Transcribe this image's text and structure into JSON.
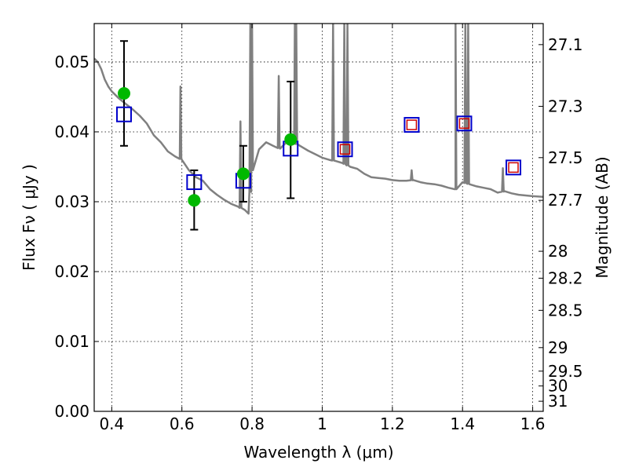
{
  "chart_data": {
    "type": "scatter",
    "xlabel": "Wavelength  λ (μm)",
    "ylabel": "Flux  Fν  ( μJy )",
    "ylabel_right": "Magnitude (AB)",
    "xlim": [
      0.35,
      1.63
    ],
    "ylim": [
      0.0,
      0.0555
    ],
    "grid": true,
    "x_ticks": [
      0.4,
      0.6,
      0.8,
      1.0,
      1.2,
      1.4,
      1.6
    ],
    "x_tick_labels": [
      "0.4",
      "0.6",
      "0.8",
      "1",
      "1.2",
      "1.4",
      "1.6"
    ],
    "y_ticks": [
      0.0,
      0.01,
      0.02,
      0.03,
      0.04,
      0.05
    ],
    "y_tick_labels": [
      "0.00",
      "0.01",
      "0.02",
      "0.03",
      "0.04",
      "0.05"
    ],
    "mag_ticks": [
      "27.1",
      "27.3",
      "27.5",
      "27.7",
      "28",
      "28.2",
      "28.5",
      "29",
      "29.5",
      "30",
      "31"
    ],
    "colors": {
      "sed": "#808080",
      "observed": "#00b800",
      "model": "#0000cc",
      "model_inner": "#cc0000",
      "error": "#000000"
    },
    "sed_model": {
      "x": [
        0.35,
        0.36,
        0.37,
        0.38,
        0.39,
        0.4,
        0.42,
        0.44,
        0.46,
        0.48,
        0.5,
        0.52,
        0.54,
        0.56,
        0.58,
        0.594,
        0.6,
        0.62,
        0.64,
        0.66,
        0.68,
        0.7,
        0.72,
        0.74,
        0.76,
        0.78,
        0.79,
        0.8,
        0.82,
        0.84,
        0.86,
        0.88,
        0.9,
        0.92,
        0.94,
        0.96,
        0.98,
        1.0,
        1.02,
        1.04,
        1.06,
        1.08,
        1.1,
        1.12,
        1.14,
        1.16,
        1.18,
        1.2,
        1.22,
        1.24,
        1.26,
        1.28,
        1.3,
        1.32,
        1.34,
        1.36,
        1.38,
        1.4,
        1.42,
        1.44,
        1.46,
        1.48,
        1.5,
        1.52,
        1.54,
        1.56,
        1.58,
        1.6,
        1.63
      ],
      "y": [
        0.0505,
        0.05,
        0.049,
        0.0475,
        0.0465,
        0.0458,
        0.0448,
        0.044,
        0.0432,
        0.0423,
        0.0412,
        0.0395,
        0.0385,
        0.0372,
        0.0365,
        0.0362,
        0.036,
        0.0345,
        0.0335,
        0.033,
        0.0318,
        0.031,
        0.0303,
        0.0297,
        0.0293,
        0.0288,
        0.0283,
        0.0345,
        0.0375,
        0.0385,
        0.038,
        0.0376,
        0.0386,
        0.0384,
        0.0379,
        0.0373,
        0.0368,
        0.0363,
        0.036,
        0.0358,
        0.0355,
        0.035,
        0.0347,
        0.034,
        0.0335,
        0.0334,
        0.0333,
        0.0331,
        0.033,
        0.033,
        0.0331,
        0.0328,
        0.0326,
        0.0325,
        0.0323,
        0.032,
        0.0318,
        0.0328,
        0.0325,
        0.0322,
        0.032,
        0.0318,
        0.0313,
        0.0315,
        0.0312,
        0.031,
        0.0309,
        0.0308,
        0.0307
      ],
      "emission_lines": [
        {
          "x": 0.596,
          "peak": 0.0465
        },
        {
          "x": 0.767,
          "peak": 0.0415
        },
        {
          "x": 0.795,
          "peak": 0.0555
        },
        {
          "x": 0.8,
          "peak": 0.0555
        },
        {
          "x": 0.876,
          "peak": 0.048
        },
        {
          "x": 0.922,
          "peak": 0.0555
        },
        {
          "x": 0.926,
          "peak": 0.0555
        },
        {
          "x": 1.031,
          "peak": 0.0555
        },
        {
          "x": 1.063,
          "peak": 0.0555
        },
        {
          "x": 1.072,
          "peak": 0.0555
        },
        {
          "x": 1.255,
          "peak": 0.0345
        },
        {
          "x": 1.38,
          "peak": 0.0555
        },
        {
          "x": 1.408,
          "peak": 0.0555
        },
        {
          "x": 1.416,
          "peak": 0.0555
        },
        {
          "x": 1.515,
          "peak": 0.0348
        }
      ]
    },
    "observed": [
      {
        "x": 0.435,
        "y": 0.0455,
        "yerr_low": 0.038,
        "yerr_high": 0.053
      },
      {
        "x": 0.635,
        "y": 0.0302,
        "yerr_low": 0.026,
        "yerr_high": 0.0345
      },
      {
        "x": 0.775,
        "y": 0.034,
        "yerr_low": 0.03,
        "yerr_high": 0.038
      },
      {
        "x": 0.91,
        "y": 0.0389,
        "yerr_low": 0.0305,
        "yerr_high": 0.0472
      }
    ],
    "model_photometry": [
      {
        "x": 0.435,
        "y": 0.0425,
        "inner": false
      },
      {
        "x": 0.635,
        "y": 0.0328,
        "inner": false
      },
      {
        "x": 0.775,
        "y": 0.033,
        "inner": false
      },
      {
        "x": 0.91,
        "y": 0.0376,
        "inner": false
      },
      {
        "x": 1.065,
        "y": 0.0375,
        "inner": true
      },
      {
        "x": 1.255,
        "y": 0.041,
        "inner": true
      },
      {
        "x": 1.405,
        "y": 0.0412,
        "inner": true
      },
      {
        "x": 1.545,
        "y": 0.0349,
        "inner": true
      }
    ]
  }
}
